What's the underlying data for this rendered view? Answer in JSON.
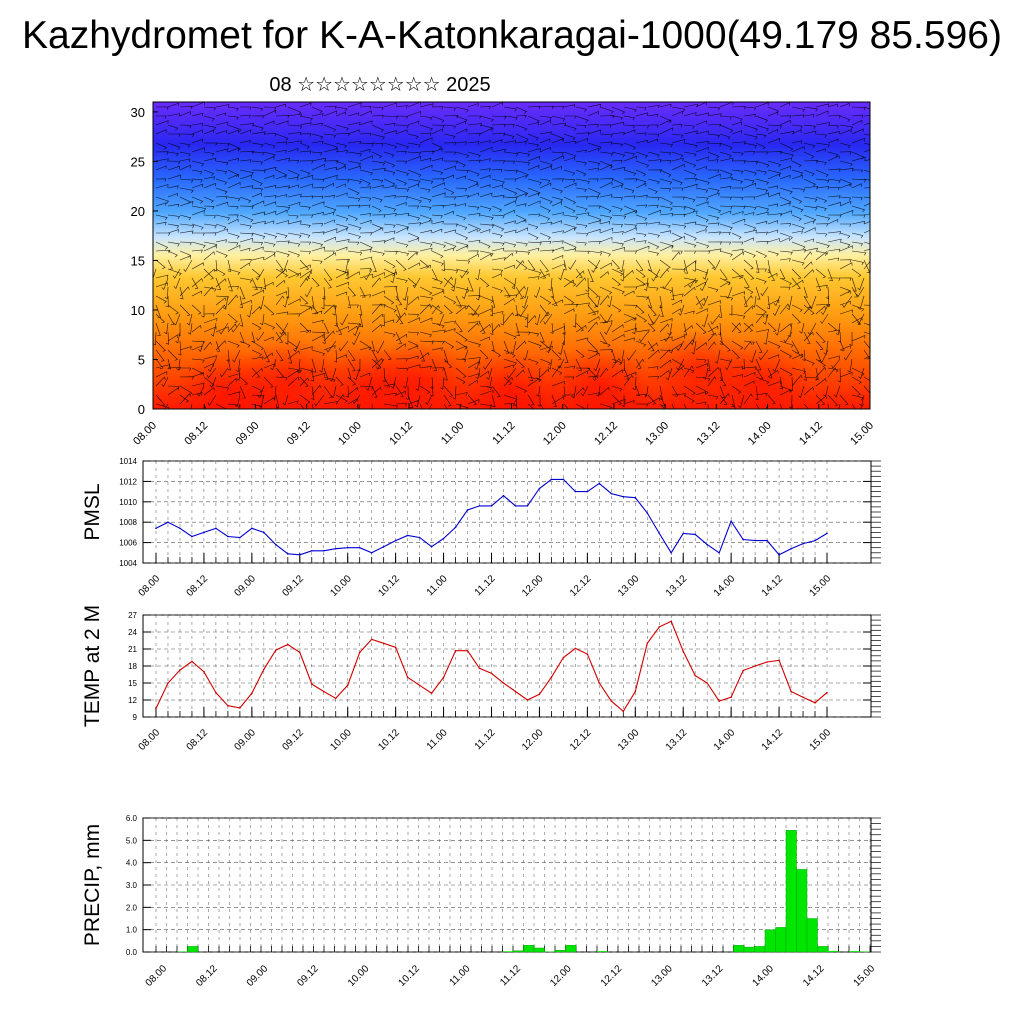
{
  "title": "Kazhydromet for K-A-Katonkaragai-1000(49.179 85.596)",
  "subtitle": "08 ☆☆☆☆☆☆☆☆ 2025",
  "colors": {
    "pmsl": "#0000d0",
    "temp": "#d00000",
    "precip": "#00e600",
    "axis": "#000000",
    "grid": "#555555"
  },
  "chart_data": [
    {
      "type": "heatmap",
      "title": "",
      "ylim": [
        0,
        31
      ],
      "yticks": [
        "0",
        "5",
        "10",
        "15",
        "20",
        "25",
        "30"
      ],
      "xticks": [
        "08.00",
        "08.12",
        "09.00",
        "09.12",
        "10.00",
        "10.12",
        "11.00",
        "11.12",
        "12.00",
        "12.12",
        "13.00",
        "13.12",
        "14.00",
        "14.12",
        "15.00"
      ],
      "colormap": [
        "#ff0000",
        "#ff6600",
        "#ffa500",
        "#ffe066",
        "#b0d8ff",
        "#4aa0ff",
        "#2040ff",
        "#5020ff"
      ],
      "overlay": "wind barbs"
    },
    {
      "type": "line",
      "ylabel": "PMSL",
      "ylim": [
        1004,
        1014
      ],
      "yticks": [
        "1004",
        "1006",
        "1008",
        "1010",
        "1012",
        "1014"
      ],
      "xticks": [
        "08.00",
        "08.12",
        "09.00",
        "09.12",
        "10.00",
        "10.12",
        "11.00",
        "11.12",
        "12.00",
        "12.12",
        "13.00",
        "13.12",
        "14.00",
        "14.12",
        "15.00"
      ],
      "series": [
        {
          "values": [
            1007.4,
            1008.0,
            1007.4,
            1006.6,
            1007.0,
            1007.4,
            1006.6,
            1006.5,
            1007.4,
            1007.0,
            1005.8,
            1004.9,
            1004.8,
            1005.2,
            1005.2,
            1005.4,
            1005.5,
            1005.5,
            1005.0,
            1005.6,
            1006.2,
            1006.7,
            1006.5,
            1005.6,
            1006.4,
            1007.5,
            1009.2,
            1009.6,
            1009.6,
            1010.6,
            1009.6,
            1009.6,
            1011.3,
            1012.2,
            1012.2,
            1011.0,
            1011.0,
            1011.8,
            1010.8,
            1010.5,
            1010.4,
            1008.9,
            1006.9,
            1005.0,
            1006.9,
            1006.8,
            1005.8,
            1005.0,
            1008.1,
            1006.3,
            1006.2,
            1006.2,
            1004.8,
            1005.4,
            1005.9,
            1006.2,
            1006.9
          ]
        }
      ]
    },
    {
      "type": "line",
      "ylabel": "TEMP at 2 M",
      "ylim": [
        9,
        27
      ],
      "yticks": [
        "9",
        "12",
        "15",
        "18",
        "21",
        "24",
        "27"
      ],
      "xticks": [
        "08.00",
        "08.12",
        "09.00",
        "09.12",
        "10.00",
        "10.12",
        "11.00",
        "11.12",
        "12.00",
        "12.12",
        "13.00",
        "13.12",
        "14.00",
        "14.12",
        "15.00"
      ],
      "series": [
        {
          "values": [
            10.5,
            15.0,
            17.3,
            18.8,
            17.0,
            13.3,
            11.0,
            10.6,
            13.2,
            17.4,
            20.8,
            21.8,
            20.4,
            14.8,
            13.5,
            12.3,
            14.6,
            20.4,
            22.7,
            22.0,
            21.3,
            16.0,
            14.6,
            13.2,
            16.0,
            20.7,
            20.7,
            17.6,
            16.7,
            15.0,
            13.5,
            12.0,
            13.0,
            16.0,
            19.5,
            21.1,
            20.1,
            15.0,
            11.8,
            10.0,
            13.5,
            22.0,
            24.9,
            25.9,
            20.6,
            16.3,
            15.0,
            11.8,
            12.5,
            17.2,
            18.0,
            18.7,
            19.0,
            13.5,
            12.5,
            11.5,
            13.3
          ]
        }
      ]
    },
    {
      "type": "bar",
      "ylabel": "PRECIP, mm",
      "ylim": [
        0,
        6
      ],
      "yticks": [
        "0.0",
        "1.0",
        "2.0",
        "3.0",
        "4.0",
        "5.0",
        "6.0"
      ],
      "xticks": [
        "08.00",
        "08.12",
        "09.00",
        "09.12",
        "10.00",
        "10.12",
        "11.00",
        "11.12",
        "12.00",
        "12.12",
        "13.00",
        "13.12",
        "14.00",
        "14.12",
        "15.00"
      ],
      "values": [
        0,
        0,
        0.02,
        0.25,
        0,
        0,
        0,
        0,
        0,
        0,
        0,
        0,
        0,
        0,
        0,
        0,
        0,
        0,
        0,
        0,
        0,
        0,
        0,
        0,
        0,
        0,
        0,
        0,
        0,
        0,
        0,
        0,
        0,
        0.03,
        0.06,
        0.3,
        0.18,
        0.02,
        0.08,
        0.3,
        0,
        0,
        0.04,
        0,
        0,
        0,
        0,
        0,
        0,
        0,
        0,
        0,
        0,
        0,
        0,
        0.3,
        0.22,
        0.25,
        1.0,
        1.1,
        5.45,
        3.7,
        1.5,
        0.25,
        0.05,
        0,
        0.04,
        0.02
      ]
    }
  ]
}
